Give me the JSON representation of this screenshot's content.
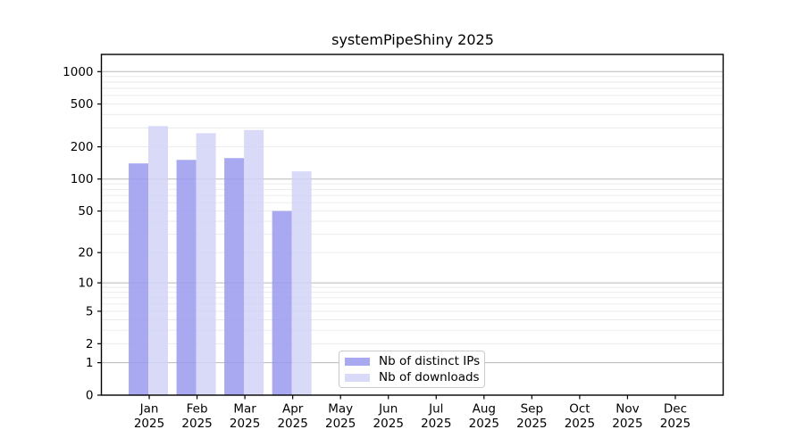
{
  "figure": {
    "background": "#ffffff"
  },
  "chart_data": {
    "type": "bar",
    "title": "systemPipeShiny 2025",
    "categories": [
      "Jan",
      "Feb",
      "Mar",
      "Apr",
      "May",
      "Jun",
      "Jul",
      "Aug",
      "Sep",
      "Oct",
      "Nov",
      "Dec"
    ],
    "category_year": "2025",
    "series": [
      {
        "name": "Nb of distinct IPs",
        "color": "#9a9af0",
        "values": [
          140,
          151,
          157,
          50,
          null,
          null,
          null,
          null,
          null,
          null,
          null,
          null
        ]
      },
      {
        "name": "Nb of downloads",
        "color": "#d2d2f7",
        "values": [
          312,
          268,
          287,
          118,
          null,
          null,
          null,
          null,
          null,
          null,
          null,
          null
        ]
      }
    ],
    "bar_alpha": 0.85,
    "y_axis": {
      "ticks": [
        1000,
        500,
        200,
        100,
        50,
        20,
        10,
        5,
        2,
        1,
        0
      ],
      "scale": "log10(value+1)",
      "range": [
        0,
        1440
      ]
    },
    "grid": {
      "major_values": [
        1,
        10,
        100,
        1000
      ],
      "minor_values": [
        2,
        3,
        4,
        5,
        6,
        7,
        8,
        9,
        20,
        30,
        40,
        50,
        60,
        70,
        80,
        90,
        200,
        300,
        400,
        500,
        600,
        700,
        800,
        900
      ],
      "major_color": "#b8b8b8",
      "minor_color": "#e9e9e9"
    },
    "axis_color": "#000000",
    "legend_position": "inside-bottom-center"
  }
}
